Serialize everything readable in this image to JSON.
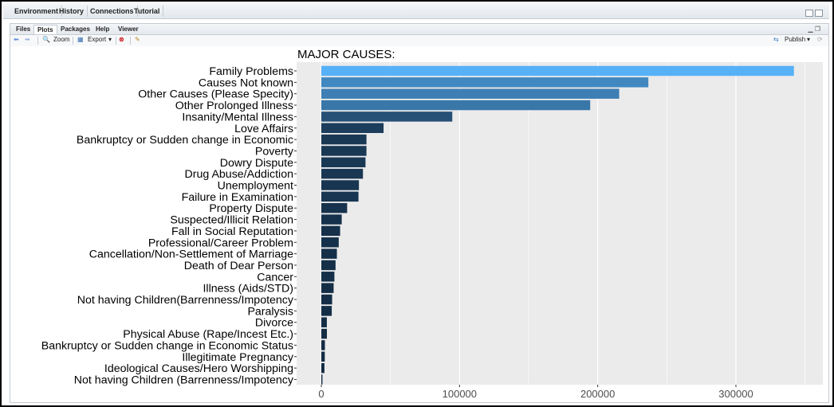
{
  "env_tabs": [
    "Environment",
    "History",
    "Connections",
    "Tutorial"
  ],
  "files_tabs": [
    "Files",
    "Plots",
    "Packages",
    "Help",
    "Viewer"
  ],
  "toolbar": {
    "zoom": "Zoom",
    "export": "Export",
    "publish": "Publish"
  },
  "icons": {
    "back": "arrow-left-icon",
    "forward": "arrow-right-icon",
    "zoom": "magnifier-icon",
    "export": "export-icon",
    "remove": "remove-plot-icon",
    "clear": "broom-icon",
    "publish": "publish-icon",
    "refresh": "refresh-icon"
  },
  "chart_data": {
    "type": "bar",
    "orientation": "horizontal",
    "title": "MAJOR CAUSES:",
    "xlabel": "",
    "ylabel": "",
    "categories": [
      "Family Problems",
      "Causes Not known",
      "Other Causes (Please Specity)",
      "Other Prolonged Illness",
      "Insanity/Mental Illness",
      "Love Affairs",
      "Bankruptcy or Sudden change in Economic",
      "Poverty",
      "Dowry Dispute",
      "Drug Abuse/Addiction",
      "Unemployment",
      "Failure in Examination",
      "Property Dispute",
      "Suspected/Illicit Relation",
      "Fall in Social Reputation",
      "Professional/Career Problem",
      "Cancellation/Non-Settlement of Marriage",
      "Death of Dear Person",
      "Cancer",
      "Illness (Aids/STD)",
      "Not having Children(Barrenness/Impotency",
      "Paralysis",
      "Divorce",
      "Physical Abuse (Rape/Incest Etc.)",
      "Bankruptcy or Sudden change in Economic Status",
      "Illegitimate Pregnancy",
      "Ideological Causes/Hero Worshipping",
      "Not having Children (Barrenness/Impotency"
    ],
    "values": [
      341952,
      236636,
      215520,
      194565,
      94766,
      45039,
      32680,
      32652,
      31963,
      30130,
      27213,
      26884,
      18682,
      14750,
      13606,
      12598,
      11265,
      10290,
      9457,
      8896,
      7822,
      7546,
      4004,
      4052,
      2600,
      2508,
      2260,
      816
    ],
    "xticks": [
      0,
      100000,
      200000,
      300000
    ],
    "xticklabels": [
      "0",
      "100000",
      "200000",
      "300000"
    ],
    "xlim": [
      0,
      358000
    ],
    "color_low": "#132b43",
    "color_high": "#56b1f7",
    "panel_bg": "#ebebeb",
    "grid": true
  }
}
